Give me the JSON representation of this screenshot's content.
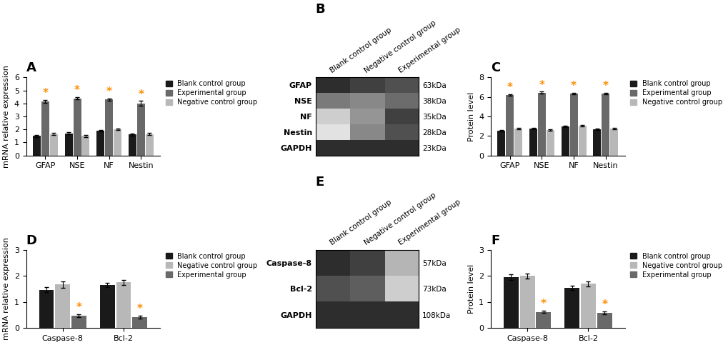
{
  "chart_data": [
    {
      "type": "bar",
      "title": "A",
      "ylabel": "mRNA relative expression",
      "categories": [
        "GFAP",
        "NSE",
        "NF",
        "Nestin"
      ],
      "series": [
        {
          "name": "Blank control group",
          "color": "#1a1a1a",
          "values": [
            1.5,
            1.7,
            1.9,
            1.6
          ],
          "errors": [
            0.08,
            0.07,
            0.07,
            0.1
          ]
        },
        {
          "name": "Experimental group",
          "color": "#696969",
          "values": [
            4.15,
            4.4,
            4.3,
            4.0
          ],
          "errors": [
            0.12,
            0.1,
            0.1,
            0.2
          ]
        },
        {
          "name": "Negative control group",
          "color": "#b8b8b8",
          "values": [
            1.65,
            1.5,
            2.0,
            1.65
          ],
          "errors": [
            0.08,
            0.07,
            0.07,
            0.1
          ]
        }
      ],
      "ylim": [
        0,
        6
      ],
      "yticks": [
        0,
        1,
        2,
        3,
        4,
        5,
        6
      ],
      "legend": "upper left",
      "annotations": [
        {
          "text": "*",
          "category": "GFAP",
          "series": "Experimental group",
          "y": 4.35,
          "color": "#ff8c00"
        },
        {
          "text": "*",
          "category": "NSE",
          "series": "Experimental group",
          "y": 4.6,
          "color": "#ff8c00"
        },
        {
          "text": "*",
          "category": "NF",
          "series": "Experimental group",
          "y": 4.5,
          "color": "#ff8c00"
        },
        {
          "text": "*",
          "category": "Nestin",
          "series": "Experimental group",
          "y": 4.28,
          "color": "#ff8c00"
        }
      ]
    },
    {
      "type": "heatmap",
      "title": "B",
      "x_categories": [
        "Blank control group",
        "Negative control group",
        "Experimental group"
      ],
      "y_categories": [
        "GFAP",
        "NSE",
        "NF",
        "Nestin",
        "GAPDH"
      ],
      "y2_categories": [
        "63kDa",
        "38kDa",
        "35kDa",
        "28kDa",
        "23kDa"
      ],
      "values": [
        [
          0.85,
          0.8,
          0.75
        ],
        [
          0.6,
          0.55,
          0.65
        ],
        [
          0.3,
          0.5,
          0.8
        ],
        [
          0.2,
          0.55,
          0.75
        ],
        [
          0.85,
          0.85,
          0.85
        ]
      ],
      "color_range": [
        0,
        1
      ]
    },
    {
      "type": "bar",
      "title": "C",
      "ylabel": "Protein level",
      "categories": [
        "GFAP",
        "NSE",
        "NF",
        "Nestin"
      ],
      "series": [
        {
          "name": "Blank control group",
          "color": "#1a1a1a",
          "values": [
            2.55,
            2.75,
            2.95,
            2.65
          ],
          "errors": [
            0.07,
            0.07,
            0.07,
            0.07
          ]
        },
        {
          "name": "Experimental group",
          "color": "#696969",
          "values": [
            6.2,
            6.45,
            6.35,
            6.35
          ],
          "errors": [
            0.1,
            0.1,
            0.1,
            0.1
          ]
        },
        {
          "name": "Negative control group",
          "color": "#b8b8b8",
          "values": [
            2.75,
            2.6,
            3.05,
            2.75
          ],
          "errors": [
            0.07,
            0.07,
            0.07,
            0.07
          ]
        }
      ],
      "ylim": [
        0,
        8
      ],
      "yticks": [
        0,
        2,
        4,
        6,
        8
      ],
      "legend": "upper left",
      "annotations": [
        {
          "text": "*",
          "category": "GFAP",
          "series": "Experimental group",
          "y": 6.4,
          "color": "#ff8c00"
        },
        {
          "text": "*",
          "category": "NSE",
          "series": "Experimental group",
          "y": 6.65,
          "color": "#ff8c00"
        },
        {
          "text": "*",
          "category": "NF",
          "series": "Experimental group",
          "y": 6.55,
          "color": "#ff8c00"
        },
        {
          "text": "*",
          "category": "Nestin",
          "series": "Experimental group",
          "y": 6.55,
          "color": "#ff8c00"
        }
      ]
    },
    {
      "type": "bar",
      "title": "D",
      "ylabel": "mRNA relative expression",
      "categories": [
        "Caspase-8",
        "Bcl-2"
      ],
      "series": [
        {
          "name": "Blank control group",
          "color": "#1a1a1a",
          "values": [
            1.47,
            1.65
          ],
          "errors": [
            0.1,
            0.08
          ]
        },
        {
          "name": "Negative control group",
          "color": "#b8b8b8",
          "values": [
            1.67,
            1.75
          ],
          "errors": [
            0.12,
            0.1
          ]
        },
        {
          "name": "Experimental group",
          "color": "#696969",
          "values": [
            0.47,
            0.42
          ],
          "errors": [
            0.06,
            0.06
          ]
        }
      ],
      "ylim": [
        0,
        3
      ],
      "yticks": [
        0,
        1,
        2,
        3
      ],
      "legend": "upper left",
      "annotations": [
        {
          "text": "*",
          "category": "Caspase-8",
          "series": "Experimental group",
          "y": 0.57,
          "color": "#ff8c00"
        },
        {
          "text": "*",
          "category": "Bcl-2",
          "series": "Experimental group",
          "y": 0.52,
          "color": "#ff8c00"
        }
      ]
    },
    {
      "type": "heatmap",
      "title": "E",
      "x_categories": [
        "Blank control group",
        "Negative control group",
        "Experimental group"
      ],
      "y_categories": [
        "Caspase-8",
        "Bcl-2",
        "GAPDH"
      ],
      "y2_categories": [
        "57kDa",
        "73kDa",
        "108kDa"
      ],
      "values": [
        [
          0.85,
          0.8,
          0.4
        ],
        [
          0.75,
          0.7,
          0.3
        ],
        [
          0.85,
          0.85,
          0.85
        ]
      ],
      "color_range": [
        0,
        1
      ]
    },
    {
      "type": "bar",
      "title": "F",
      "ylabel": "Protein level",
      "categories": [
        "Caspase-8",
        "Bcl-2"
      ],
      "series": [
        {
          "name": "Blank control group",
          "color": "#1a1a1a",
          "values": [
            1.95,
            1.55
          ],
          "errors": [
            0.1,
            0.08
          ]
        },
        {
          "name": "Negative control group",
          "color": "#b8b8b8",
          "values": [
            2.0,
            1.7
          ],
          "errors": [
            0.1,
            0.1
          ]
        },
        {
          "name": "Experimental group",
          "color": "#696969",
          "values": [
            0.62,
            0.58
          ],
          "errors": [
            0.05,
            0.05
          ]
        }
      ],
      "ylim": [
        0,
        3
      ],
      "yticks": [
        0,
        1,
        2,
        3
      ],
      "legend": "upper left",
      "annotations": [
        {
          "text": "*",
          "category": "Caspase-8",
          "series": "Experimental group",
          "y": 0.72,
          "color": "#ff8c00"
        },
        {
          "text": "*",
          "category": "Bcl-2",
          "series": "Experimental group",
          "y": 0.68,
          "color": "#ff8c00"
        }
      ]
    }
  ]
}
